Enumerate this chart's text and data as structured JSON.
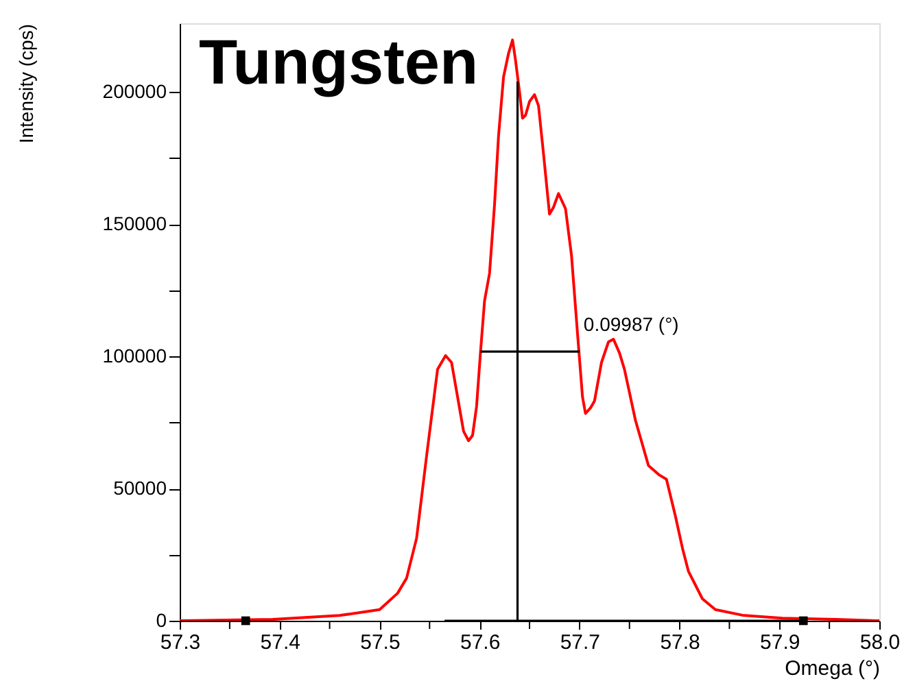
{
  "chart_data": {
    "type": "line",
    "title": "Tungsten",
    "xlabel": "Omega (°)",
    "ylabel": "Intensity (cps)",
    "xlim": [
      57.3,
      58.0
    ],
    "ylim": [
      0,
      226000
    ],
    "xticks": [
      57.3,
      {
        "value": 57.35,
        "label": null
      },
      57.4,
      {
        "value": 57.45,
        "label": null
      },
      57.5,
      {
        "value": 57.55,
        "label": null
      },
      57.6,
      {
        "value": 57.65,
        "label": null
      },
      57.7,
      {
        "value": 57.75,
        "label": null
      },
      57.8,
      {
        "value": 57.85,
        "label": null
      },
      57.9,
      {
        "value": 57.95,
        "label": null
      },
      {
        "value": 58.0,
        "label": "58.0"
      }
    ],
    "yticks": [
      0,
      {
        "value": 25000,
        "label": null
      },
      50000,
      {
        "value": 75000,
        "label": null
      },
      100000,
      {
        "value": 125000,
        "label": null
      },
      150000,
      {
        "value": 175000,
        "label": null
      },
      200000
    ],
    "grid": false,
    "line_style": "solid",
    "series": [
      {
        "color": "#ff0000",
        "marker": "none",
        "x": [
          57.3,
          57.393,
          57.46,
          57.5,
          57.518,
          57.527,
          57.537,
          57.547,
          57.558,
          57.566,
          57.572,
          57.578,
          57.584,
          57.589,
          57.593,
          57.597,
          57.601,
          57.605,
          57.61,
          57.615,
          57.619,
          57.624,
          57.629,
          57.633,
          57.636,
          57.64,
          57.643,
          57.646,
          57.65,
          57.655,
          57.659,
          57.664,
          57.67,
          57.674,
          57.679,
          57.686,
          57.692,
          57.699,
          57.703,
          57.706,
          57.711,
          57.715,
          57.722,
          57.729,
          57.734,
          57.74,
          57.745,
          57.756,
          57.769,
          57.78,
          57.787,
          57.796,
          57.803,
          57.809,
          57.823,
          57.836,
          57.863,
          57.903,
          57.957,
          58.0
        ],
        "values": [
          0,
          500,
          2000,
          4200,
          10400,
          16100,
          31200,
          62300,
          95100,
          100300,
          97700,
          84700,
          71700,
          68100,
          70100,
          81000,
          101800,
          121000,
          131400,
          157400,
          183400,
          205700,
          214600,
          219700,
          212000,
          200000,
          190100,
          191200,
          196400,
          199000,
          194800,
          176600,
          153800,
          156400,
          161600,
          155900,
          138200,
          103900,
          84700,
          78400,
          80500,
          83100,
          97700,
          105500,
          106500,
          101300,
          95100,
          75800,
          58700,
          55100,
          53500,
          39500,
          27500,
          18700,
          8300,
          4200,
          2100,
          1000,
          500,
          0
        ]
      },
      {
        "type": "line",
        "color": "#000000",
        "marker": "none",
        "x": [
          57.565,
          57.924
        ],
        "values": [
          0,
          0
        ]
      },
      {
        "type": "line",
        "color": "#000000",
        "marker": "none",
        "x": [
          57.638,
          57.638
        ],
        "values": [
          0,
          204000
        ]
      },
      {
        "type": "line",
        "color": "#000000",
        "marker": "none",
        "x": [
          57.601,
          57.7
        ],
        "values": [
          101800,
          101800
        ]
      },
      {
        "type": "scatter",
        "color": "#000000",
        "marker": "square",
        "x": [
          57.366,
          57.924
        ],
        "values": [
          0,
          0
        ]
      }
    ],
    "annotations": [
      {
        "text": "0.09987 (°)",
        "x": 57.7,
        "y": 101800
      }
    ]
  }
}
